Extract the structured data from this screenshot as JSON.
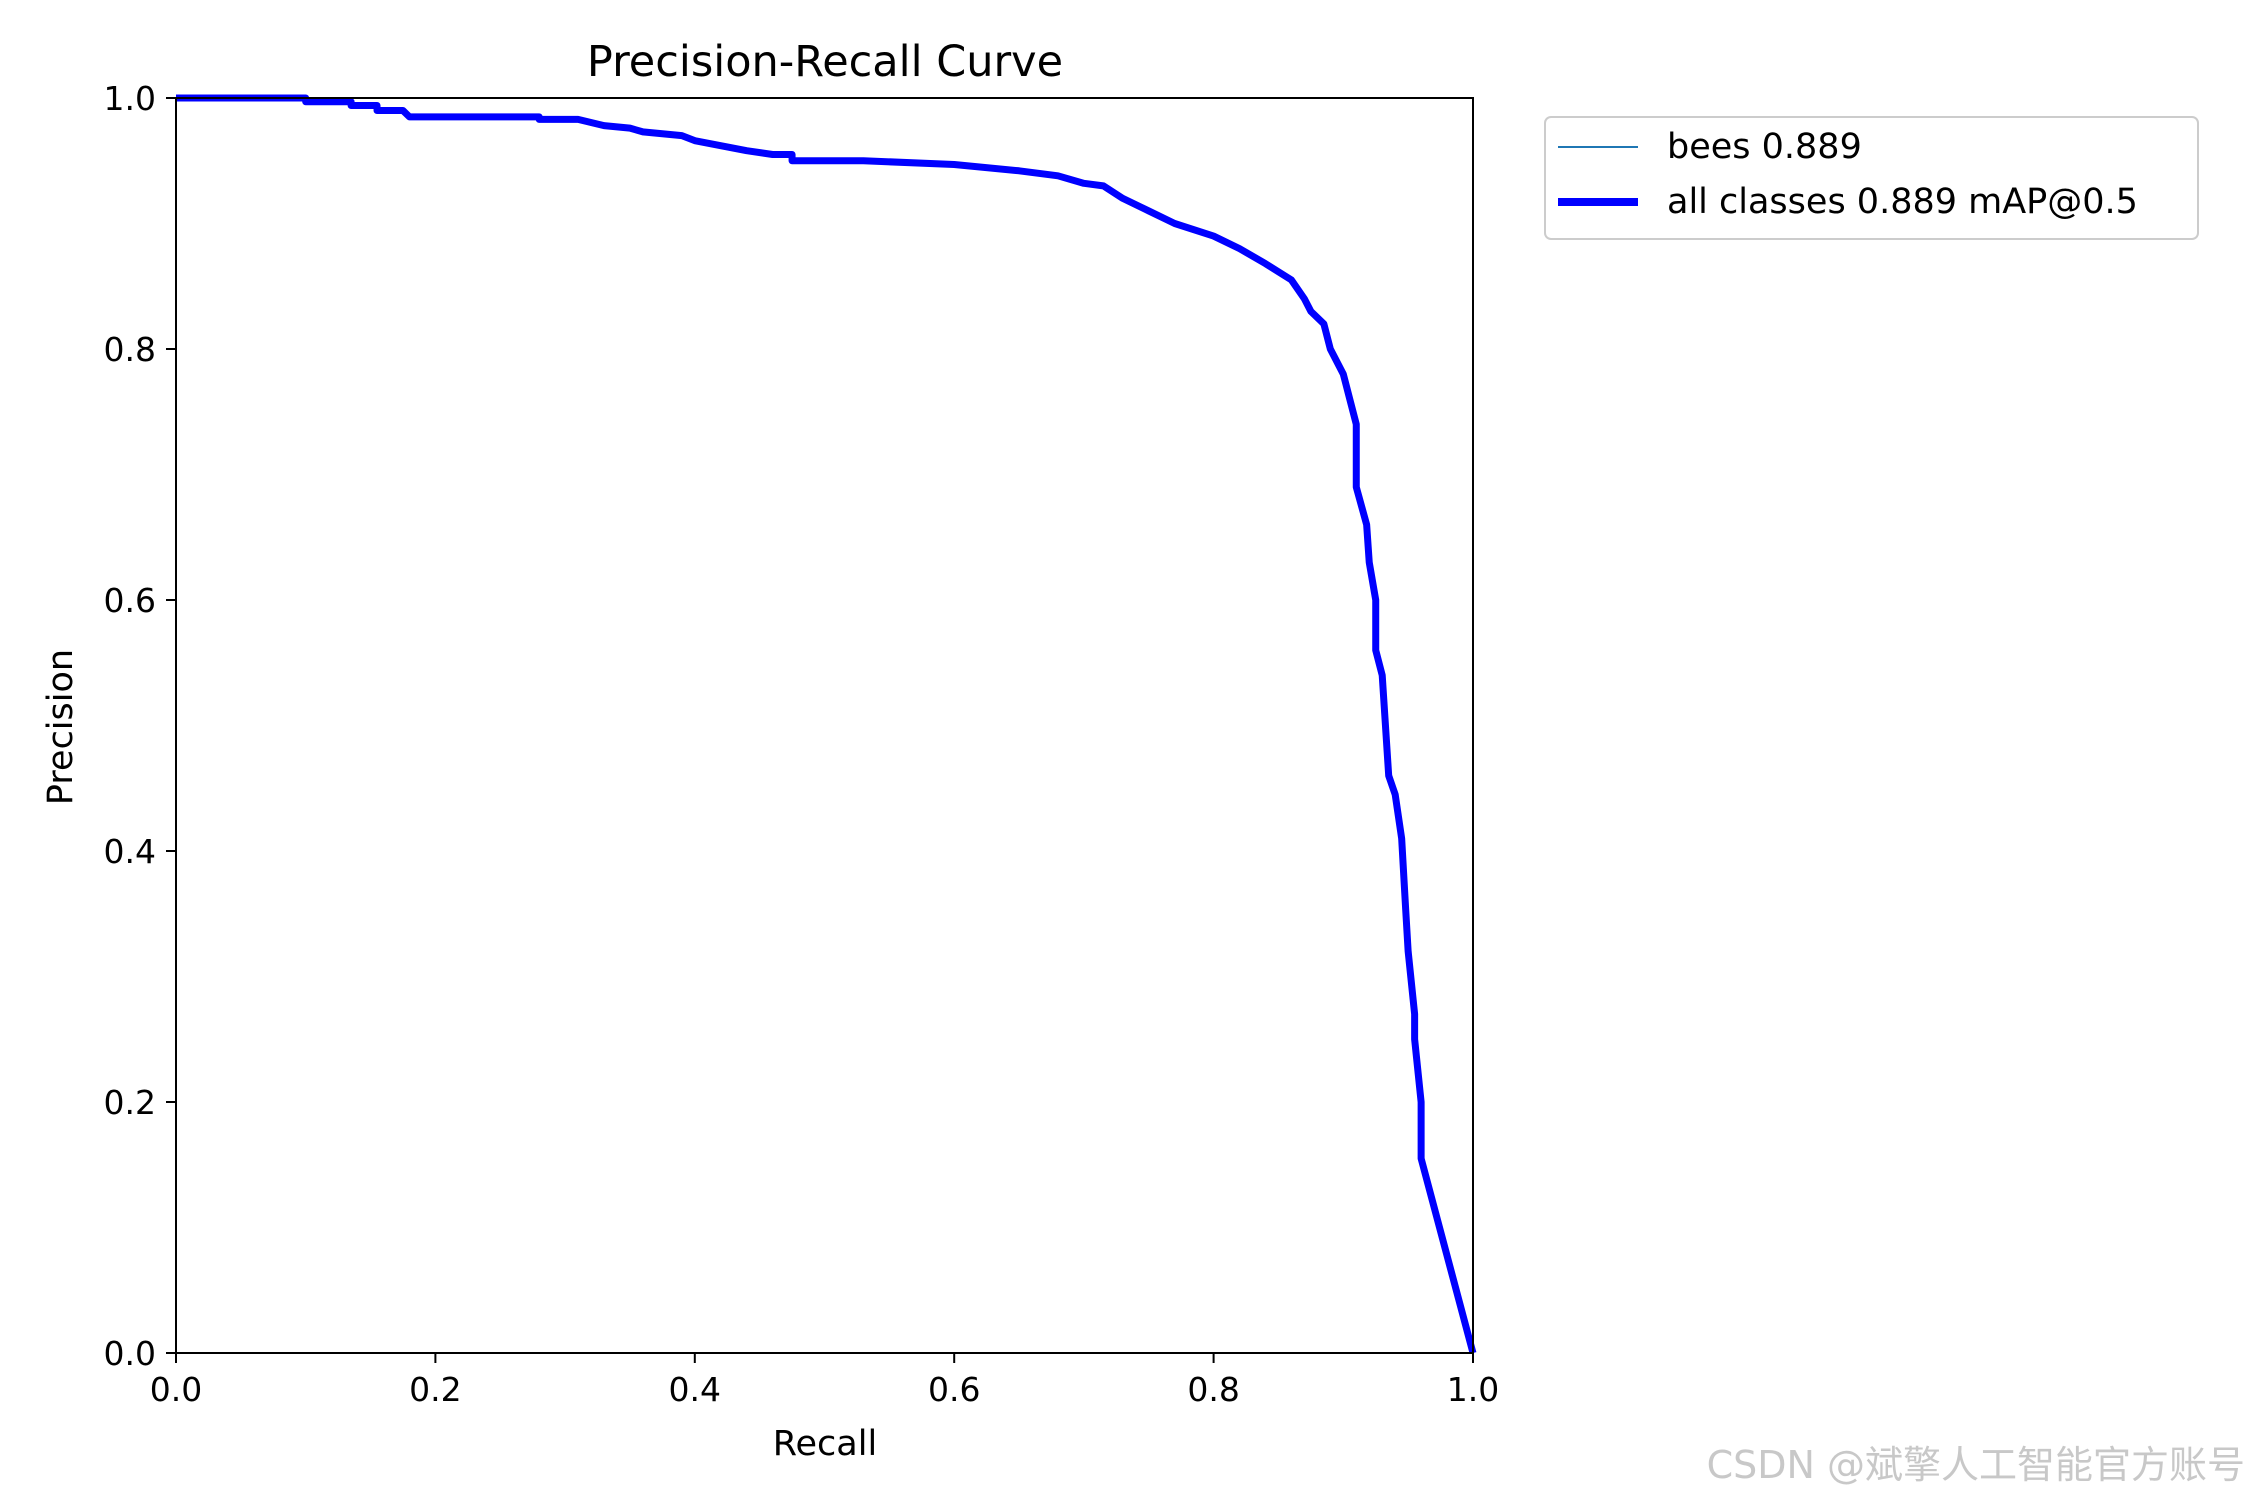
{
  "chart_data": {
    "type": "line",
    "title": "Precision-Recall Curve",
    "xlabel": "Recall",
    "ylabel": "Precision",
    "xlim": [
      0,
      1
    ],
    "ylim": [
      0,
      1
    ],
    "x_ticks": [
      "0.0",
      "0.2",
      "0.4",
      "0.6",
      "0.8",
      "1.0"
    ],
    "y_ticks": [
      "0.0",
      "0.2",
      "0.4",
      "0.6",
      "0.8",
      "1.0"
    ],
    "grid": false,
    "legend_position": "outside-top-right",
    "series": [
      {
        "name": "bees 0.889",
        "color": "#1f77b4",
        "style": "thin",
        "points": [
          [
            0.0,
            1.0
          ],
          [
            0.1,
            1.0
          ],
          [
            0.1,
            0.997
          ],
          [
            0.135,
            0.997
          ],
          [
            0.135,
            0.994
          ],
          [
            0.155,
            0.994
          ],
          [
            0.155,
            0.99
          ],
          [
            0.175,
            0.99
          ],
          [
            0.18,
            0.985
          ],
          [
            0.28,
            0.985
          ],
          [
            0.28,
            0.983
          ],
          [
            0.31,
            0.983
          ],
          [
            0.33,
            0.978
          ],
          [
            0.35,
            0.976
          ],
          [
            0.36,
            0.973
          ],
          [
            0.39,
            0.97
          ],
          [
            0.4,
            0.966
          ],
          [
            0.42,
            0.962
          ],
          [
            0.44,
            0.958
          ],
          [
            0.46,
            0.955
          ],
          [
            0.475,
            0.955
          ],
          [
            0.475,
            0.95
          ],
          [
            0.53,
            0.95
          ],
          [
            0.6,
            0.947
          ],
          [
            0.65,
            0.942
          ],
          [
            0.68,
            0.938
          ],
          [
            0.7,
            0.932
          ],
          [
            0.715,
            0.93
          ],
          [
            0.73,
            0.92
          ],
          [
            0.75,
            0.91
          ],
          [
            0.77,
            0.9
          ],
          [
            0.8,
            0.89
          ],
          [
            0.82,
            0.88
          ],
          [
            0.84,
            0.868
          ],
          [
            0.86,
            0.855
          ],
          [
            0.87,
            0.84
          ],
          [
            0.875,
            0.83
          ],
          [
            0.885,
            0.82
          ],
          [
            0.89,
            0.8
          ],
          [
            0.9,
            0.78
          ],
          [
            0.905,
            0.76
          ],
          [
            0.91,
            0.74
          ],
          [
            0.91,
            0.69
          ],
          [
            0.918,
            0.66
          ],
          [
            0.92,
            0.63
          ],
          [
            0.925,
            0.6
          ],
          [
            0.925,
            0.56
          ],
          [
            0.93,
            0.54
          ],
          [
            0.935,
            0.46
          ],
          [
            0.94,
            0.445
          ],
          [
            0.945,
            0.41
          ],
          [
            0.948,
            0.355
          ],
          [
            0.95,
            0.32
          ],
          [
            0.955,
            0.27
          ],
          [
            0.955,
            0.25
          ],
          [
            0.96,
            0.2
          ],
          [
            0.96,
            0.155
          ],
          [
            1.0,
            0.0
          ]
        ]
      },
      {
        "name": "all classes 0.889 mAP@0.5",
        "color": "#0000ff",
        "style": "thick",
        "points": [
          [
            0.0,
            1.0
          ],
          [
            0.1,
            1.0
          ],
          [
            0.1,
            0.997
          ],
          [
            0.135,
            0.997
          ],
          [
            0.135,
            0.994
          ],
          [
            0.155,
            0.994
          ],
          [
            0.155,
            0.99
          ],
          [
            0.175,
            0.99
          ],
          [
            0.18,
            0.985
          ],
          [
            0.28,
            0.985
          ],
          [
            0.28,
            0.983
          ],
          [
            0.31,
            0.983
          ],
          [
            0.33,
            0.978
          ],
          [
            0.35,
            0.976
          ],
          [
            0.36,
            0.973
          ],
          [
            0.39,
            0.97
          ],
          [
            0.4,
            0.966
          ],
          [
            0.42,
            0.962
          ],
          [
            0.44,
            0.958
          ],
          [
            0.46,
            0.955
          ],
          [
            0.475,
            0.955
          ],
          [
            0.475,
            0.95
          ],
          [
            0.53,
            0.95
          ],
          [
            0.6,
            0.947
          ],
          [
            0.65,
            0.942
          ],
          [
            0.68,
            0.938
          ],
          [
            0.7,
            0.932
          ],
          [
            0.715,
            0.93
          ],
          [
            0.73,
            0.92
          ],
          [
            0.75,
            0.91
          ],
          [
            0.77,
            0.9
          ],
          [
            0.8,
            0.89
          ],
          [
            0.82,
            0.88
          ],
          [
            0.84,
            0.868
          ],
          [
            0.86,
            0.855
          ],
          [
            0.87,
            0.84
          ],
          [
            0.875,
            0.83
          ],
          [
            0.885,
            0.82
          ],
          [
            0.89,
            0.8
          ],
          [
            0.9,
            0.78
          ],
          [
            0.905,
            0.76
          ],
          [
            0.91,
            0.74
          ],
          [
            0.91,
            0.69
          ],
          [
            0.918,
            0.66
          ],
          [
            0.92,
            0.63
          ],
          [
            0.925,
            0.6
          ],
          [
            0.925,
            0.56
          ],
          [
            0.93,
            0.54
          ],
          [
            0.935,
            0.46
          ],
          [
            0.94,
            0.445
          ],
          [
            0.945,
            0.41
          ],
          [
            0.948,
            0.355
          ],
          [
            0.95,
            0.32
          ],
          [
            0.955,
            0.27
          ],
          [
            0.955,
            0.25
          ],
          [
            0.96,
            0.2
          ],
          [
            0.96,
            0.155
          ],
          [
            1.0,
            0.0
          ]
        ]
      }
    ]
  },
  "watermark": "CSDN @斌擎人工智能官方账号"
}
